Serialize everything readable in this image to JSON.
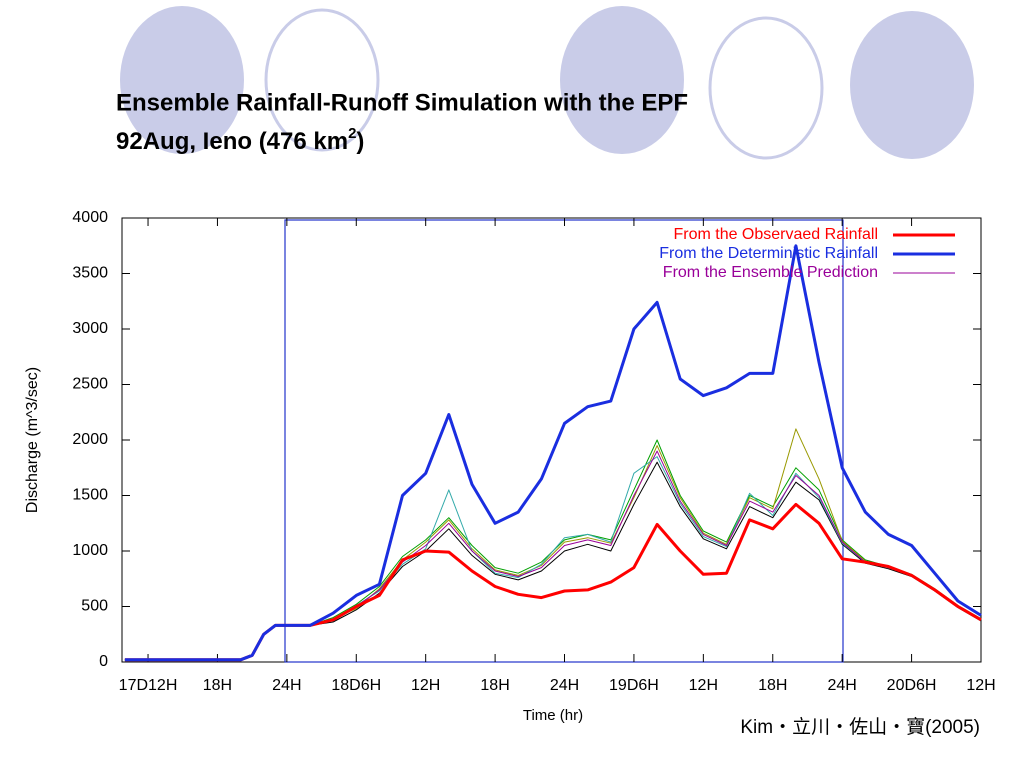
{
  "title": [
    "Ensemble Rainfall-Runoff Simulation with the EPF",
    "92Aug, Ieno (476 km",
    "2",
    ")"
  ],
  "credit": "Kim・立川・佐山・寶(2005)",
  "chart_data": {
    "type": "line",
    "xlabel": "Time (hr)",
    "ylabel": "Discharge (m^3/sec)",
    "legend": "upper right",
    "xlim": [
      -2.25,
      72
    ],
    "ylim": [
      0,
      4000
    ],
    "yticks": [
      0,
      500,
      1000,
      1500,
      2000,
      2500,
      3000,
      3500,
      4000
    ],
    "xticks": [
      {
        "value": 0,
        "label": "17D12H"
      },
      {
        "value": 6,
        "label": "18H"
      },
      {
        "value": 12,
        "label": "24H"
      },
      {
        "value": 18,
        "label": "18D6H"
      },
      {
        "value": 24,
        "label": "12H"
      },
      {
        "value": 30,
        "label": "18H"
      },
      {
        "value": 36,
        "label": "24H"
      },
      {
        "value": 42,
        "label": "19D6H"
      },
      {
        "value": 48,
        "label": "12H"
      },
      {
        "value": 54,
        "label": "18H"
      },
      {
        "value": 60,
        "label": "24H"
      },
      {
        "value": 66,
        "label": "20D6H"
      },
      {
        "value": 72,
        "label": "12H"
      }
    ],
    "x": [
      -2,
      4,
      8,
      9,
      10,
      11,
      12,
      14,
      16,
      18,
      20,
      22,
      24,
      26,
      28,
      30,
      32,
      34,
      36,
      38,
      40,
      42,
      44,
      46,
      48,
      50,
      52,
      54,
      56,
      58,
      60,
      62,
      64,
      66,
      68,
      70,
      72
    ],
    "ensemble_members": [
      {
        "color": "#00a000",
        "values": [
          20,
          20,
          20,
          60,
          250,
          330,
          330,
          330,
          400,
          520,
          680,
          950,
          1100,
          1300,
          1050,
          850,
          800,
          900,
          1100,
          1150,
          1100,
          1550,
          2000,
          1500,
          1180,
          1080,
          1500,
          1400,
          1750,
          1550,
          1100,
          920,
          860,
          790,
          660,
          510,
          390
        ]
      },
      {
        "color": "#000000",
        "values": [
          20,
          20,
          20,
          60,
          250,
          330,
          330,
          330,
          360,
          470,
          620,
          860,
          1000,
          1200,
          960,
          790,
          740,
          820,
          1000,
          1060,
          1000,
          1420,
          1800,
          1400,
          1110,
          1020,
          1400,
          1300,
          1620,
          1460,
          1060,
          890,
          840,
          770,
          640,
          490,
          370
        ]
      },
      {
        "color": "#999900",
        "values": [
          20,
          20,
          20,
          60,
          250,
          330,
          330,
          330,
          390,
          480,
          660,
          920,
          1080,
          1280,
          1020,
          830,
          780,
          870,
          1080,
          1120,
          1070,
          1480,
          1950,
          1480,
          1160,
          1060,
          1480,
          1380,
          2100,
          1650,
          1090,
          910,
          850,
          780,
          650,
          500,
          380
        ]
      },
      {
        "color": "#33aaaa",
        "values": [
          20,
          20,
          20,
          60,
          250,
          330,
          330,
          330,
          370,
          510,
          640,
          880,
          1020,
          1550,
          1000,
          800,
          760,
          880,
          1120,
          1150,
          1080,
          1700,
          1850,
          1430,
          1130,
          1040,
          1520,
          1320,
          1700,
          1480,
          1070,
          900,
          850,
          780,
          650,
          500,
          380
        ]
      }
    ],
    "series": [
      {
        "name": "From the Observaed Rainfall",
        "color": "#ff0000",
        "width": 3,
        "values": [
          20,
          20,
          20,
          60,
          250,
          330,
          330,
          330,
          380,
          500,
          600,
          920,
          1000,
          990,
          820,
          680,
          610,
          580,
          640,
          650,
          720,
          850,
          1240,
          1000,
          790,
          800,
          1280,
          1200,
          1420,
          1250,
          930,
          900,
          860,
          780,
          650,
          500,
          380
        ]
      },
      {
        "name": "From the Deterministic Rainfall",
        "color": "#1a2ee0",
        "width": 3,
        "values": [
          20,
          20,
          20,
          60,
          250,
          330,
          330,
          330,
          440,
          600,
          700,
          1500,
          1700,
          2230,
          1600,
          1250,
          1350,
          1650,
          2150,
          2300,
          2350,
          3000,
          3240,
          2550,
          2400,
          2470,
          2600,
          2600,
          3750,
          2700,
          1750,
          1350,
          1150,
          1050,
          800,
          550,
          420
        ]
      },
      {
        "name": "From the Ensemble Prediction",
        "color": "#990099",
        "width": 1,
        "values": [
          20,
          20,
          20,
          60,
          250,
          330,
          330,
          330,
          380,
          500,
          650,
          900,
          1050,
          1250,
          1000,
          820,
          770,
          850,
          1050,
          1100,
          1050,
          1500,
          1900,
          1450,
          1150,
          1050,
          1450,
          1350,
          1680,
          1500,
          1080,
          900,
          850,
          780,
          650,
          500,
          380
        ]
      }
    ]
  }
}
